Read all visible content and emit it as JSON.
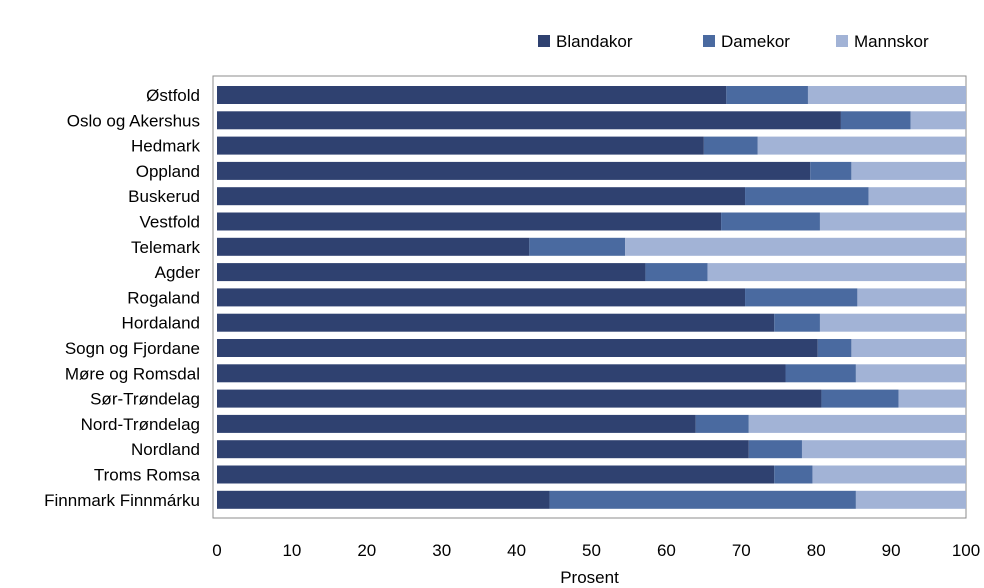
{
  "chart_data": {
    "type": "bar",
    "orientation": "horizontal",
    "stacked": true,
    "categories": [
      "Østfold",
      "Oslo og Akershus",
      "Hedmark",
      "Oppland",
      "Buskerud",
      "Vestfold",
      "Telemark",
      "Agder",
      "Rogaland",
      "Hordaland",
      "Sogn og Fjordane",
      "Møre og Romsdal",
      "Sør-Trøndelag",
      "Nord-Trøndelag",
      "Nordland",
      "Troms Romsa",
      "Finnmark Finnmárku"
    ],
    "series": [
      {
        "name": "Blandakor",
        "color": "#2f4170",
        "values": [
          68,
          83.3,
          65,
          79.2,
          70.5,
          67.3,
          41.7,
          57.2,
          70.5,
          74.4,
          80.2,
          75.9,
          80.7,
          63.9,
          71,
          74.4,
          44.4
        ]
      },
      {
        "name": "Damekor",
        "color": "#4a6aa0",
        "values": [
          10.9,
          9.3,
          7.2,
          5.5,
          16.5,
          13.2,
          12.8,
          8.3,
          15,
          6.1,
          4.5,
          9.4,
          10.3,
          7.1,
          7.1,
          5.1,
          40.9
        ]
      },
      {
        "name": "Mannskor",
        "color": "#a2b3d6",
        "values": [
          21.1,
          7.4,
          27.8,
          15.3,
          13,
          19.5,
          45.5,
          34.5,
          14.5,
          19.5,
          15.3,
          14.7,
          9,
          29,
          21.9,
          20.5,
          14.7
        ]
      }
    ],
    "xlabel": "Prosent",
    "ylabel": "",
    "xlim": [
      0,
      100
    ],
    "xticks": [
      "0",
      "10",
      "20",
      "30",
      "40",
      "50",
      "60",
      "70",
      "80",
      "90",
      "100"
    ],
    "legend_position": "top-right",
    "grid": false
  }
}
